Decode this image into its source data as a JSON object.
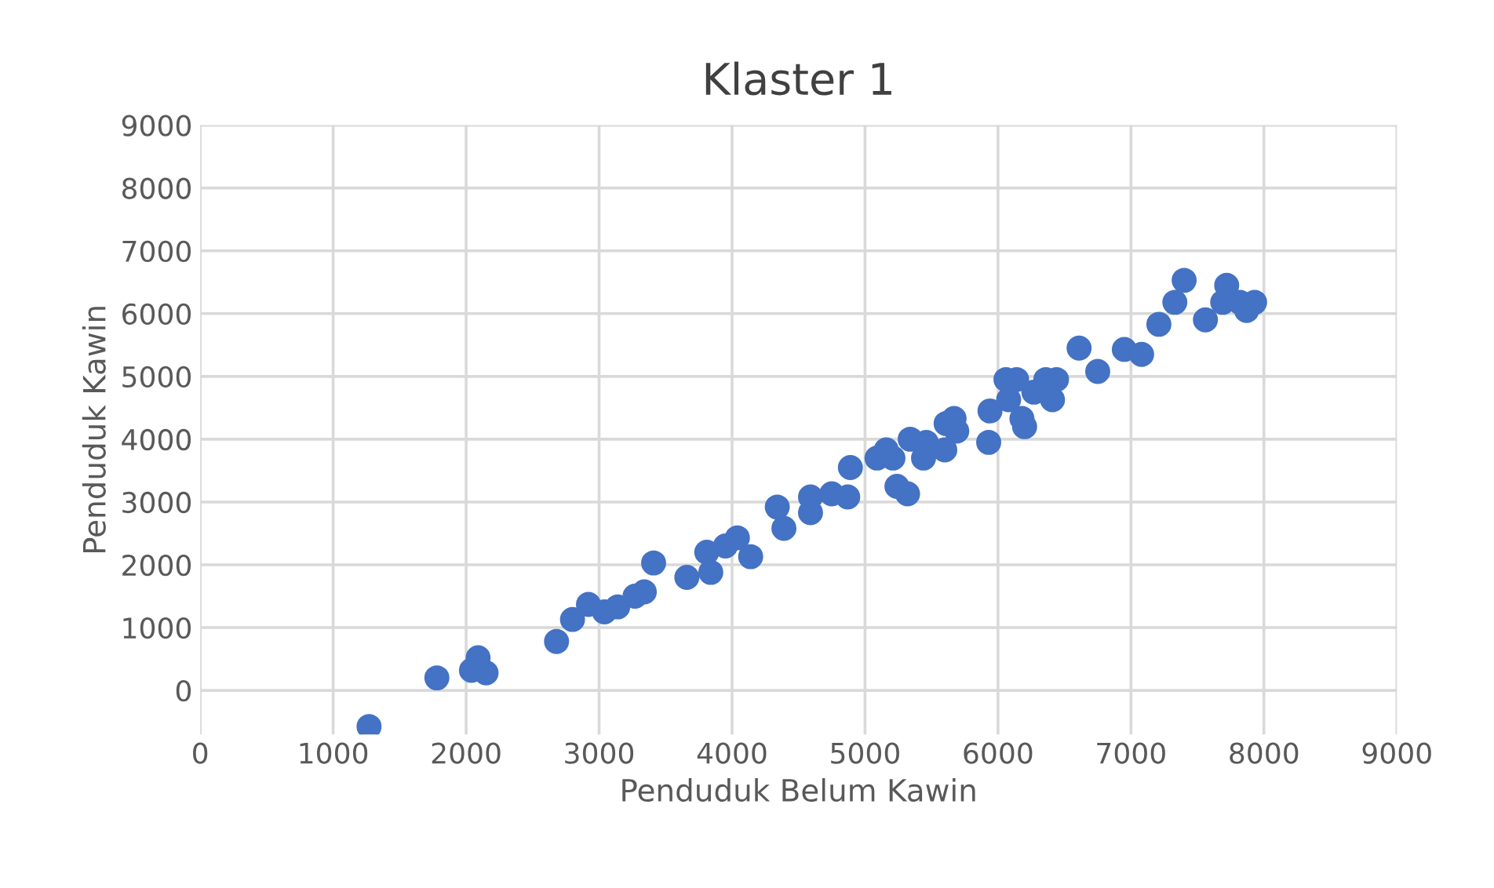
{
  "chart_data": {
    "type": "scatter",
    "title": "Klaster 1",
    "xlabel": "Penduduk Belum Kawin",
    "ylabel": "Penduduk Kawin",
    "x": [
      1270,
      1780,
      2090,
      2040,
      2150,
      2680,
      2800,
      2920,
      3040,
      3140,
      3270,
      3340,
      3410,
      3660,
      3810,
      3840,
      4040,
      3950,
      4140,
      4390,
      4340,
      4590,
      4590,
      4750,
      4870,
      4890,
      5090,
      5210,
      5160,
      5240,
      5320,
      5440,
      5340,
      5460,
      5600,
      5610,
      5690,
      5670,
      5930,
      5940,
      6060,
      6140,
      6080,
      6180,
      6200,
      6270,
      6360,
      6440,
      6410,
      6610,
      6750,
      6950,
      7080,
      7210,
      7330,
      7400,
      7560,
      7720,
      7690,
      7820,
      7930,
      7870
    ],
    "series": [
      {
        "color": "#4472c4",
        "values": [
          -575,
          200,
          520,
          320,
          280,
          780,
          1130,
          1370,
          1250,
          1330,
          1500,
          1570,
          2030,
          1800,
          2200,
          1880,
          2430,
          2300,
          2130,
          2580,
          2920,
          3080,
          2830,
          3130,
          3080,
          3550,
          3700,
          3700,
          3830,
          3250,
          3130,
          3700,
          4000,
          3950,
          3830,
          4250,
          4130,
          4330,
          3950,
          4450,
          4950,
          4950,
          4630,
          4330,
          4200,
          4750,
          4950,
          4950,
          4630,
          5450,
          5080,
          5430,
          5350,
          5830,
          6180,
          6530,
          5900,
          6450,
          6180,
          6180,
          6180,
          6050
        ]
      }
    ],
    "xlim": [
      0,
      9000
    ],
    "xticks": [
      0,
      1000,
      2000,
      3000,
      4000,
      5000,
      6000,
      7000,
      8000,
      9000
    ],
    "ylim": [
      -700,
      9000
    ],
    "yticks": [
      0,
      1000,
      2000,
      3000,
      4000,
      5000,
      6000,
      7000,
      8000,
      9000
    ],
    "grid": true,
    "marker": "circle"
  }
}
